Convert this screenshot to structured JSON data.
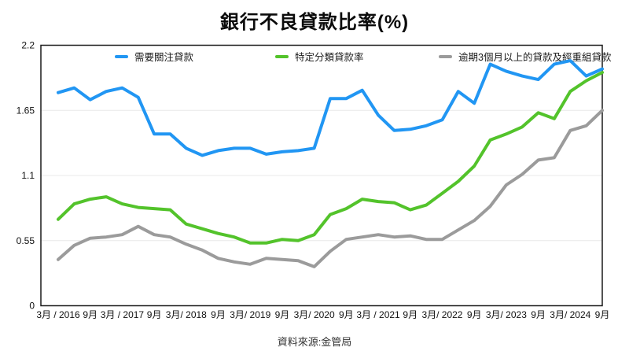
{
  "title": "銀行不良貸款比率(%)",
  "source_note": "資料來源:金管局",
  "colors": {
    "blue": "#2196F3",
    "green": "#53C32B",
    "gray": "#9B9B9B",
    "grid": "#E8E8E8",
    "axis": "#1A1A1A",
    "tick_text": "#111111"
  },
  "legend": [
    {
      "label": "需要關注貸款",
      "color_key": "blue"
    },
    {
      "label": "特定分類貸款率",
      "color_key": "green"
    },
    {
      "label": "逾期3個月以上的貸款及經重組貸款",
      "color_key": "gray"
    }
  ],
  "chart_data": {
    "type": "line",
    "title": "銀行不良貸款比率(%)",
    "xlabel": "",
    "ylabel": "",
    "ylim": [
      0,
      2.2
    ],
    "y_ticks": [
      0,
      0.55,
      1.1,
      1.65,
      2.2
    ],
    "y_tick_labels": [
      "0",
      "0.55",
      "1.1",
      "1.65",
      "2.2"
    ],
    "grid": "horizontal",
    "legend_position": "top",
    "x_resolution": "quarterly, labels every 2nd point",
    "x_tick_labels": [
      "3月 / 2016",
      "9月",
      "3月 / 2017",
      "9月",
      "3月/ 2018",
      "9月",
      "3月/ 2019",
      "9月",
      "3月/ 2020",
      "9月",
      "3月 / 2021",
      "9月",
      "3月/ 2022",
      "9月",
      "3月/ 2023",
      "9月",
      "3月/ 2024",
      "9月"
    ],
    "points_per_tick": 2,
    "series": [
      {
        "name": "需要關注貸款",
        "color": "#2196F3",
        "values": [
          1.8,
          1.84,
          1.74,
          1.81,
          1.84,
          1.76,
          1.45,
          1.45,
          1.33,
          1.27,
          1.31,
          1.33,
          1.33,
          1.28,
          1.3,
          1.31,
          1.33,
          1.75,
          1.75,
          1.82,
          1.61,
          1.48,
          1.49,
          1.52,
          1.57,
          1.81,
          1.71,
          2.04,
          1.98,
          1.94,
          1.91,
          2.04,
          2.07,
          1.94,
          2.0
        ]
      },
      {
        "name": "特定分類貸款率",
        "color": "#53C32B",
        "values": [
          0.73,
          0.86,
          0.9,
          0.92,
          0.86,
          0.83,
          0.82,
          0.81,
          0.69,
          0.65,
          0.61,
          0.58,
          0.53,
          0.53,
          0.56,
          0.55,
          0.6,
          0.77,
          0.82,
          0.9,
          0.88,
          0.87,
          0.81,
          0.85,
          0.95,
          1.05,
          1.18,
          1.4,
          1.45,
          1.51,
          1.63,
          1.58,
          1.81,
          1.9,
          1.97
        ]
      },
      {
        "name": "逾期3個月以上的貸款及經重組貸款",
        "color": "#9B9B9B",
        "values": [
          0.39,
          0.51,
          0.57,
          0.58,
          0.6,
          0.67,
          0.6,
          0.58,
          0.52,
          0.47,
          0.4,
          0.37,
          0.35,
          0.4,
          0.39,
          0.38,
          0.33,
          0.46,
          0.56,
          0.58,
          0.6,
          0.58,
          0.59,
          0.56,
          0.56,
          0.64,
          0.72,
          0.84,
          1.02,
          1.11,
          1.23,
          1.25,
          1.48,
          1.52,
          1.65
        ]
      }
    ],
    "source": "資料來源:金管局"
  }
}
